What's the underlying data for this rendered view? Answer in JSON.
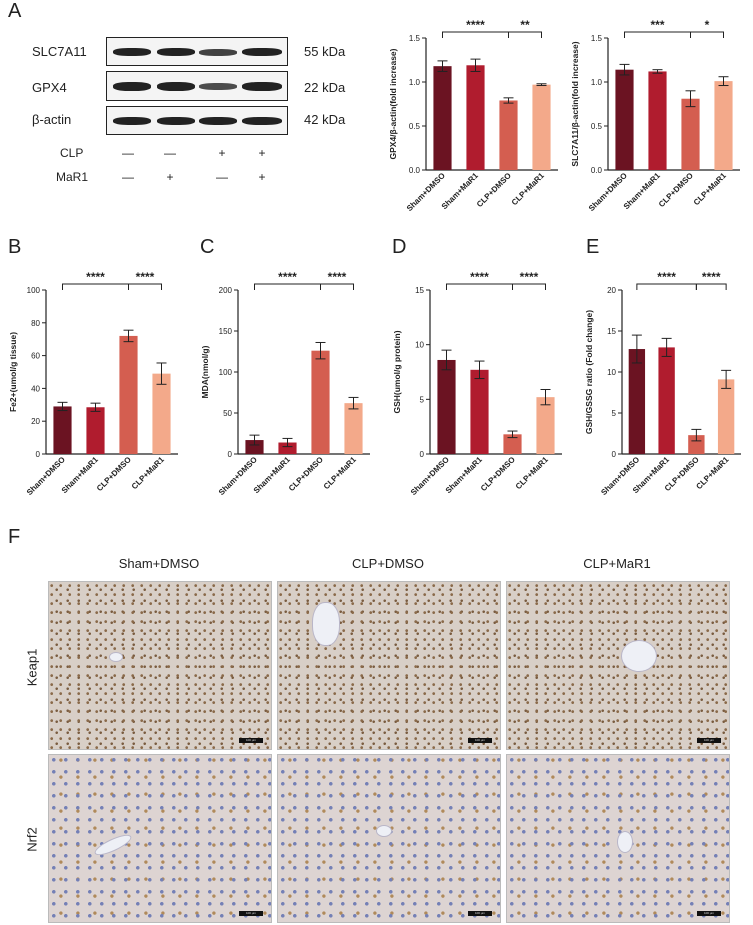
{
  "panels": {
    "A": "A",
    "B": "B",
    "C": "C",
    "D": "D",
    "E": "E",
    "F": "F"
  },
  "blot": {
    "rows": [
      {
        "protein": "SLC7A11",
        "size": "55 kDa"
      },
      {
        "protein": "GPX4",
        "size": "22 kDa"
      },
      {
        "protein": "β-actin",
        "size": "42 kDa"
      }
    ],
    "conditions": [
      {
        "label": "CLP",
        "signs": [
          "—",
          "—",
          "+",
          "+"
        ]
      },
      {
        "label": "MaR1",
        "signs": [
          "—",
          "+",
          "—",
          "+"
        ]
      }
    ]
  },
  "chart_data": [
    {
      "id": "A-gpx4",
      "type": "bar",
      "ylabel": "GPX4/β-actin(fold increase)",
      "ylim": [
        0,
        1.5
      ],
      "yticks": [
        "0.0",
        "0.5",
        "1.0",
        "1.5"
      ],
      "categories": [
        "Sham+DMSO",
        "Sham+MaR1",
        "CLP+DMSO",
        "CLP+MaR1"
      ],
      "values": [
        1.18,
        1.19,
        0.79,
        0.97
      ],
      "errors": [
        0.06,
        0.07,
        0.03,
        0.01
      ],
      "sig": [
        {
          "from": 0,
          "to": 2,
          "label": "****"
        },
        {
          "from": 2,
          "to": 3,
          "label": "**"
        }
      ]
    },
    {
      "id": "A-slc",
      "type": "bar",
      "ylabel": "SLC7A11/β-actin(fold increase)",
      "ylim": [
        0,
        1.5
      ],
      "yticks": [
        "0.0",
        "0.5",
        "1.0",
        "1.5"
      ],
      "categories": [
        "Sham+DMSO",
        "Sham+MaR1",
        "CLP+DMSO",
        "CLP+MaR1"
      ],
      "values": [
        1.14,
        1.12,
        0.81,
        1.01
      ],
      "errors": [
        0.06,
        0.02,
        0.09,
        0.05
      ],
      "sig": [
        {
          "from": 0,
          "to": 2,
          "label": "***"
        },
        {
          "from": 2,
          "to": 3,
          "label": "*"
        }
      ]
    },
    {
      "id": "B",
      "type": "bar",
      "ylabel": "Fe2+(umol/g tissue)",
      "ylim": [
        0,
        100
      ],
      "yticks": [
        "0",
        "20",
        "40",
        "60",
        "80",
        "100"
      ],
      "categories": [
        "Sham+DMSO",
        "Sham+MaR1",
        "CLP+DMSO",
        "CLP+MaR1"
      ],
      "values": [
        29,
        28.5,
        72,
        49
      ],
      "errors": [
        2.5,
        2.5,
        3.5,
        6.5
      ],
      "sig": [
        {
          "from": 0,
          "to": 2,
          "label": "****"
        },
        {
          "from": 2,
          "to": 3,
          "label": "****"
        }
      ]
    },
    {
      "id": "C",
      "type": "bar",
      "ylabel": "MDA(nmol/g)",
      "ylim": [
        0,
        200
      ],
      "yticks": [
        "0",
        "50",
        "100",
        "150",
        "200"
      ],
      "categories": [
        "Sham+DMSO",
        "Sham+MaR1",
        "CLP+DMSO",
        "CLP+MaR1"
      ],
      "values": [
        17,
        14,
        126,
        62
      ],
      "errors": [
        6,
        5,
        10,
        7
      ],
      "sig": [
        {
          "from": 0,
          "to": 2,
          "label": "****"
        },
        {
          "from": 2,
          "to": 3,
          "label": "****"
        }
      ]
    },
    {
      "id": "D",
      "type": "bar",
      "ylabel": "GSH(umol/g protein)",
      "ylim": [
        0,
        15
      ],
      "yticks": [
        "0",
        "5",
        "10",
        "15"
      ],
      "categories": [
        "Sham+DMSO",
        "Sham+MaR1",
        "CLP+DMSO",
        "CLP+MaR1"
      ],
      "values": [
        8.6,
        7.7,
        1.8,
        5.2
      ],
      "errors": [
        0.9,
        0.8,
        0.3,
        0.7
      ],
      "sig": [
        {
          "from": 0,
          "to": 2,
          "label": "****"
        },
        {
          "from": 2,
          "to": 3,
          "label": "****"
        }
      ]
    },
    {
      "id": "E",
      "type": "bar",
      "ylabel": "GSH/GSSG ratio (Fold change)",
      "ylim": [
        0,
        20
      ],
      "yticks": [
        "0",
        "5",
        "10",
        "15",
        "20"
      ],
      "categories": [
        "Sham+DMSO",
        "Sham+MaR1",
        "CLP+DMSO",
        "CLP+MaR1"
      ],
      "values": [
        12.8,
        13.0,
        2.3,
        9.1
      ],
      "errors": [
        1.7,
        1.1,
        0.7,
        1.1
      ],
      "sig": [
        {
          "from": 0,
          "to": 2,
          "label": "****"
        },
        {
          "from": 2,
          "to": 3,
          "label": "****"
        }
      ]
    }
  ],
  "colors": [
    "#6b1322",
    "#b01c2e",
    "#d45e50",
    "#f3a98a"
  ],
  "histology": {
    "columns": [
      "Sham+DMSO",
      "CLP+DMSO",
      "CLP+MaR1"
    ],
    "rows": [
      "Keap1",
      "Nrf2"
    ],
    "scale_bar": "100 μm"
  }
}
